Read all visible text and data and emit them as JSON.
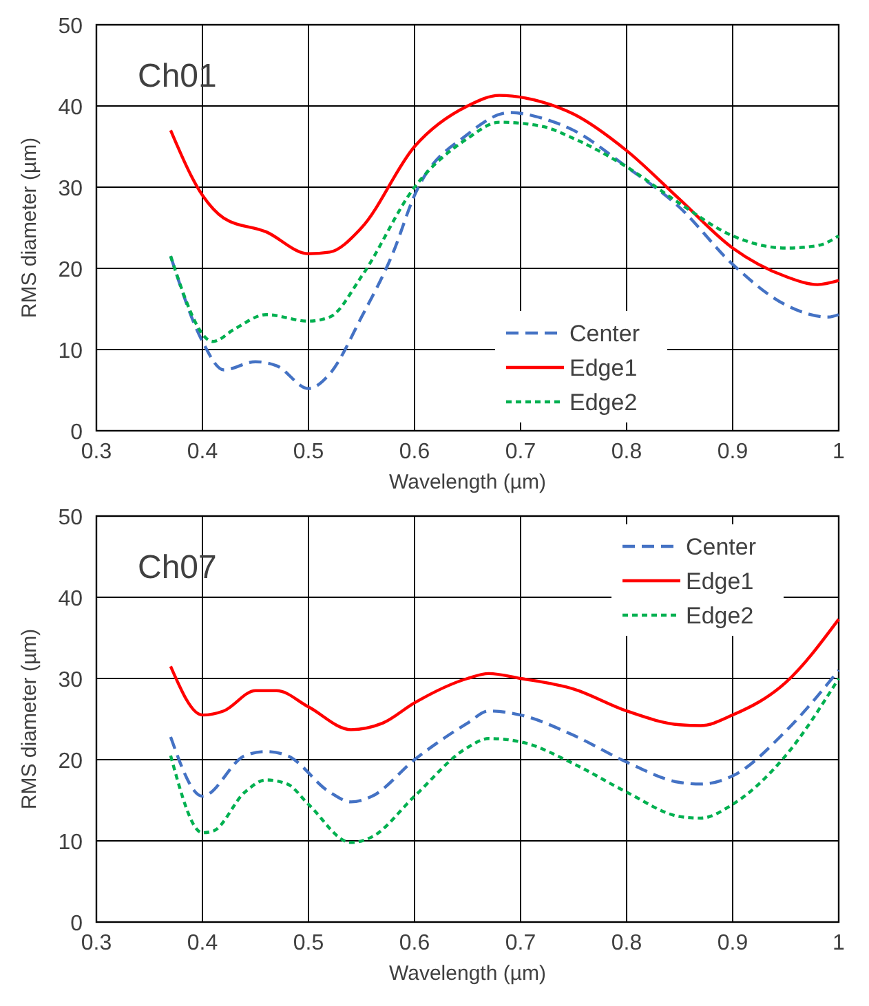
{
  "chart_data": [
    {
      "type": "line",
      "title": "Ch01",
      "xlabel": "Wavelength (µm)",
      "ylabel": "RMS diameter (µm)",
      "xlim": [
        0.3,
        1
      ],
      "ylim": [
        0,
        50
      ],
      "xticks": [
        0.3,
        0.4,
        0.5,
        0.6,
        0.7,
        0.8,
        0.9,
        1
      ],
      "yticks": [
        0,
        10,
        20,
        30,
        40,
        50
      ],
      "grid": true,
      "legend": "bottom",
      "series": [
        {
          "name": "Center",
          "color": "#4472c4",
          "line_style": "dashed",
          "x": [
            0.37,
            0.4,
            0.42,
            0.45,
            0.47,
            0.5,
            0.52,
            0.55,
            0.58,
            0.6,
            0.65,
            0.69,
            0.72,
            0.75,
            0.8,
            0.85,
            0.9,
            0.95,
            0.99,
            1.0
          ],
          "values": [
            21.5,
            11,
            7.5,
            8.5,
            8,
            5.2,
            7,
            14,
            22,
            29,
            36.5,
            39.2,
            38.5,
            37,
            32.5,
            27.5,
            20.5,
            15.5,
            14,
            14.3
          ]
        },
        {
          "name": "Edge1",
          "color": "#ff0000",
          "line_style": "solid",
          "x": [
            0.37,
            0.4,
            0.42,
            0.46,
            0.5,
            0.52,
            0.55,
            0.6,
            0.65,
            0.68,
            0.72,
            0.75,
            0.8,
            0.85,
            0.9,
            0.95,
            0.98,
            1.0
          ],
          "values": [
            37,
            29,
            26.2,
            24.5,
            21.8,
            22,
            25,
            35,
            40,
            41.3,
            40.5,
            39,
            34.5,
            28.5,
            22.5,
            19,
            18,
            18.5
          ]
        },
        {
          "name": "Edge2",
          "color": "#00b050",
          "line_style": "dotted",
          "x": [
            0.37,
            0.41,
            0.43,
            0.46,
            0.5,
            0.52,
            0.55,
            0.6,
            0.65,
            0.68,
            0.72,
            0.75,
            0.8,
            0.85,
            0.9,
            0.95,
            0.98,
            1.0
          ],
          "values": [
            21.5,
            11,
            12.5,
            14.3,
            13.5,
            14,
            19,
            30,
            36,
            38,
            37.5,
            36,
            32.5,
            28,
            24,
            22.5,
            22.8,
            24
          ]
        }
      ]
    },
    {
      "type": "line",
      "title": "Ch07",
      "xlabel": "Wavelength (µm)",
      "ylabel": "RMS diameter (µm)",
      "xlim": [
        0.3,
        1
      ],
      "ylim": [
        0,
        50
      ],
      "xticks": [
        0.3,
        0.4,
        0.5,
        0.6,
        0.7,
        0.8,
        0.9,
        1
      ],
      "yticks": [
        0,
        10,
        20,
        30,
        40,
        50
      ],
      "grid": true,
      "legend": "top right",
      "series": [
        {
          "name": "Center",
          "color": "#4472c4",
          "line_style": "dashed",
          "x": [
            0.37,
            0.4,
            0.44,
            0.46,
            0.48,
            0.52,
            0.54,
            0.56,
            0.6,
            0.65,
            0.67,
            0.7,
            0.75,
            0.8,
            0.85,
            0.87,
            0.9,
            0.95,
            1.0
          ],
          "values": [
            22.8,
            15.5,
            20.5,
            21,
            20.5,
            16,
            14.8,
            15.5,
            20,
            24.5,
            26,
            25.5,
            23,
            19.7,
            17.2,
            17,
            18,
            23.5,
            31
          ]
        },
        {
          "name": "Edge1",
          "color": "#ff0000",
          "line_style": "solid",
          "x": [
            0.37,
            0.4,
            0.42,
            0.45,
            0.47,
            0.5,
            0.54,
            0.57,
            0.6,
            0.65,
            0.67,
            0.7,
            0.75,
            0.8,
            0.85,
            0.87,
            0.9,
            0.95,
            1.0
          ],
          "values": [
            31.5,
            25.5,
            26,
            28.5,
            28.5,
            26.5,
            23.7,
            24.5,
            27,
            30,
            30.6,
            30,
            28.7,
            26,
            24.3,
            24.2,
            25.5,
            29.5,
            37.3
          ]
        },
        {
          "name": "Edge2",
          "color": "#00b050",
          "line_style": "dotted",
          "x": [
            0.37,
            0.4,
            0.41,
            0.44,
            0.46,
            0.48,
            0.5,
            0.54,
            0.56,
            0.6,
            0.65,
            0.67,
            0.7,
            0.75,
            0.8,
            0.85,
            0.87,
            0.9,
            0.95,
            1.0
          ],
          "values": [
            20.5,
            11,
            11.2,
            16,
            17.5,
            17,
            14.5,
            9.8,
            10.5,
            15.5,
            21.5,
            22.6,
            22.2,
            19.5,
            16,
            13,
            12.8,
            14.5,
            20.5,
            30
          ]
        }
      ]
    }
  ]
}
